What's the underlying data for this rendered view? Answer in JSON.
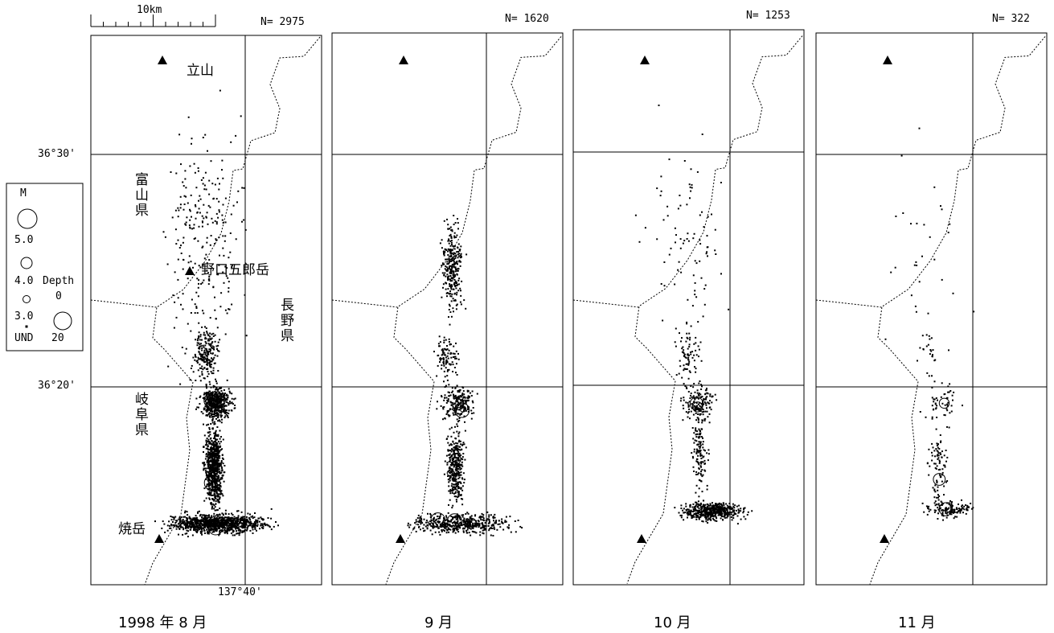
{
  "scale_bar": {
    "label": "10km"
  },
  "latitude_labels": [
    "36°30'",
    "36°20'"
  ],
  "longitude_label": "137°40'",
  "place_labels": {
    "tateyama": "立山",
    "toyama_pref": "富山県",
    "noguchi": "野口五郎岳",
    "nagano_pref": "長野県",
    "gifu_pref": "岐阜県",
    "yakedake": "焼岳"
  },
  "legend": {
    "magnitude_title": "M",
    "magnitudes": [
      "5.0",
      "4.0",
      "3.0",
      "UND"
    ],
    "depth_title": "Depth",
    "depths": [
      "0",
      "20"
    ]
  },
  "panels": [
    {
      "caption": "1998 年 8 月",
      "count": "N= 2975"
    },
    {
      "caption": "9 月",
      "count": "N= 1620"
    },
    {
      "caption": "10 月",
      "count": "N= 1253"
    },
    {
      "caption": "11 月",
      "count": "N= 322"
    }
  ],
  "colors": {
    "ink": "#000000",
    "background": "#ffffff"
  }
}
